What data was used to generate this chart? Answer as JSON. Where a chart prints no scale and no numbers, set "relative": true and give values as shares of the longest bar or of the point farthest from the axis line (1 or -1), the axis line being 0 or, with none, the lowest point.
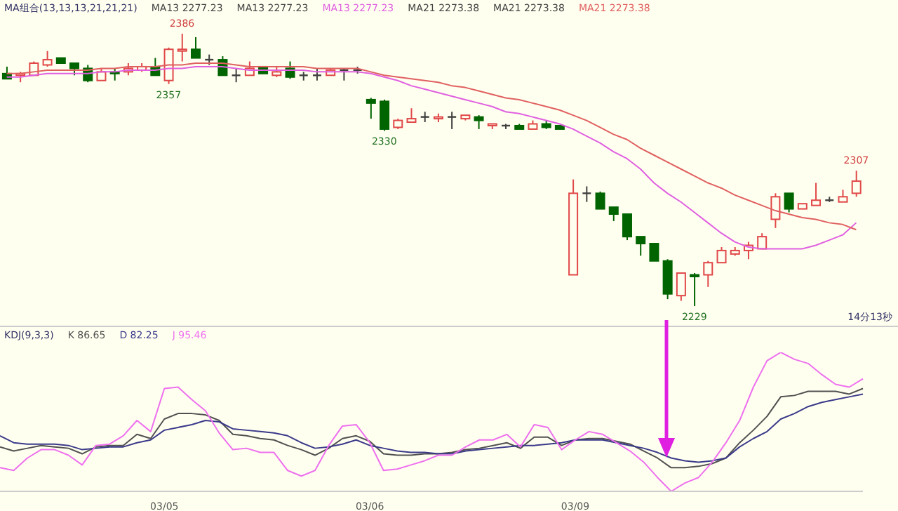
{
  "chart_data": [
    {
      "type": "candlestick",
      "title": "MA组合(13,13,13,21,21,21)",
      "categories": [
        null,
        null,
        null,
        null,
        null,
        null,
        null,
        null,
        null,
        null,
        null,
        null,
        null,
        null,
        null,
        null,
        null,
        null,
        null,
        null,
        null,
        null,
        null,
        null,
        null,
        null,
        null,
        null,
        null,
        null,
        null,
        null,
        null,
        null,
        null,
        null,
        null,
        null,
        null,
        null,
        null,
        null,
        null,
        null,
        null,
        null,
        null,
        null,
        null,
        null,
        null,
        null,
        null,
        null,
        null,
        null,
        null,
        null,
        null,
        null,
        null,
        null,
        null,
        null
      ],
      "ohlc": [
        [
          2363,
          2367,
          2360,
          2360
        ],
        [
          2362,
          2364,
          2358,
          2363
        ],
        [
          2362,
          2370,
          2362,
          2369
        ],
        [
          2368,
          2376,
          2367,
          2371
        ],
        [
          2372,
          2372,
          2369,
          2369
        ],
        [
          2369,
          2369,
          2362,
          2366
        ],
        [
          2366,
          2368,
          2358,
          2359
        ],
        [
          2359,
          2366,
          2359,
          2364
        ],
        [
          2364,
          2366,
          2359,
          2363
        ],
        [
          2364,
          2369,
          2362,
          2366
        ],
        [
          2365,
          2369,
          2364,
          2367
        ],
        [
          2367,
          2372,
          2362,
          2362
        ],
        [
          2359,
          2378,
          2357,
          2377
        ],
        [
          2376,
          2386,
          2370,
          2377
        ],
        [
          2377,
          2384,
          2372,
          2372
        ],
        [
          2371,
          2374,
          2368,
          2371
        ],
        [
          2371,
          2373,
          2362,
          2362
        ],
        [
          2362,
          2366,
          2358,
          2362
        ],
        [
          2362,
          2370,
          2362,
          2366
        ],
        [
          2367,
          2367,
          2363,
          2363
        ],
        [
          2362,
          2367,
          2361,
          2364
        ],
        [
          2366,
          2370,
          2360,
          2361
        ],
        [
          2362,
          2364,
          2359,
          2362
        ],
        [
          2362,
          2366,
          2359,
          2362
        ],
        [
          2362,
          2366,
          2362,
          2365
        ],
        [
          2365,
          2366,
          2359,
          2365
        ],
        [
          2365,
          2367,
          2363,
          2365
        ],
        [
          2348,
          2349,
          2337,
          2346
        ],
        [
          2347,
          2348,
          2330,
          2331
        ],
        [
          2332,
          2337,
          2331,
          2336
        ],
        [
          2335,
          2343,
          2335,
          2337
        ],
        [
          2338,
          2341,
          2335,
          2338
        ],
        [
          2337,
          2340,
          2335,
          2338
        ],
        [
          2338,
          2341,
          2331,
          2338
        ],
        [
          2337,
          2339,
          2336,
          2339
        ],
        [
          2338,
          2339,
          2331,
          2336
        ],
        [
          2333,
          2334,
          2331,
          2334
        ],
        [
          2333,
          2334,
          2331,
          2333
        ],
        [
          2333,
          2334,
          2331,
          2331
        ],
        [
          2331,
          2336,
          2331,
          2334
        ],
        [
          2334,
          2336,
          2331,
          2332
        ],
        [
          2333,
          2333,
          2331,
          2331
        ],
        [
          2247,
          2302,
          2247,
          2294
        ],
        [
          2294,
          2298,
          2289,
          2294
        ],
        [
          2294,
          2295,
          2285,
          2285
        ],
        [
          2286,
          2286,
          2278,
          2282
        ],
        [
          2282,
          2282,
          2267,
          2269
        ],
        [
          2269,
          2269,
          2258,
          2265
        ],
        [
          2265,
          2265,
          2255,
          2255
        ],
        [
          2255,
          2256,
          2233,
          2236
        ],
        [
          2235,
          2248,
          2232,
          2248
        ],
        [
          2247,
          2248,
          2229,
          2246
        ],
        [
          2247,
          2255,
          2240,
          2254
        ],
        [
          2254,
          2263,
          2254,
          2261
        ],
        [
          2259,
          2263,
          2258,
          2261
        ],
        [
          2261,
          2266,
          2256,
          2264
        ],
        [
          2262,
          2271,
          2262,
          2269
        ],
        [
          2279,
          2294,
          2274,
          2292
        ],
        [
          2294,
          2294,
          2283,
          2285
        ],
        [
          2285,
          2288,
          2285,
          2288
        ],
        [
          2287,
          2300,
          2287,
          2290
        ],
        [
          2290,
          2292,
          2289,
          2290
        ],
        [
          2289,
          2296,
          2289,
          2292
        ],
        [
          2294,
          2307,
          2292,
          2301
        ]
      ],
      "series": [
        {
          "type": "line",
          "name": "MA13 2277.23",
          "color": "#e060e0",
          "values": [
            2361,
            2361,
            2362,
            2363,
            2363,
            2363,
            2363,
            2364,
            2364,
            2365,
            2365,
            2365,
            2366,
            2366,
            2367,
            2367,
            2367,
            2366,
            2365,
            2365,
            2365,
            2365,
            2365,
            2364,
            2364,
            2364,
            2364,
            2363,
            2361,
            2359,
            2356,
            2354,
            2352,
            2350,
            2348,
            2346,
            2344,
            2341,
            2340,
            2338,
            2336,
            2334,
            2331,
            2327,
            2323,
            2318,
            2314,
            2308,
            2300,
            2294,
            2289,
            2283,
            2277,
            2271,
            2266,
            2263,
            2262,
            2262,
            2262,
            2262,
            2264,
            2267,
            2270,
            2277
          ]
        },
        {
          "type": "line",
          "name": "MA21 2273.38",
          "color": "#e06060",
          "values": [
            2363,
            2363,
            2364,
            2365,
            2365,
            2365,
            2365,
            2366,
            2366,
            2367,
            2367,
            2367,
            2368,
            2368,
            2369,
            2369,
            2369,
            2368,
            2367,
            2367,
            2367,
            2367,
            2367,
            2366,
            2366,
            2366,
            2366,
            2364,
            2362,
            2361,
            2360,
            2359,
            2358,
            2356,
            2355,
            2353,
            2351,
            2349,
            2348,
            2346,
            2344,
            2342,
            2339,
            2336,
            2332,
            2328,
            2325,
            2320,
            2316,
            2312,
            2308,
            2304,
            2300,
            2297,
            2293,
            2290,
            2287,
            2284,
            2282,
            2280,
            2279,
            2277,
            2276,
            2273
          ]
        }
      ],
      "annotations": [
        "MA13 2277.23",
        "MA13 2277.23",
        "MA21 2273.38",
        "MA21 2273.38",
        "14分13秒",
        {
          "text": "2386",
          "y": 2386
        },
        {
          "text": "2357",
          "y": 2357
        },
        {
          "text": "2330",
          "y": 2330
        },
        {
          "text": "2229",
          "y": 2229
        },
        {
          "text": "2307",
          "y": 2307
        }
      ],
      "legend": "top"
    },
    {
      "type": "line",
      "title": "KDJ(9,3,3)",
      "relative": true,
      "categories": [
        null,
        null,
        null,
        null,
        null,
        null,
        null,
        null,
        null,
        null,
        null,
        null,
        "03/05",
        null,
        null,
        null,
        null,
        null,
        null,
        null,
        null,
        null,
        null,
        null,
        null,
        null,
        null,
        "03/06",
        null,
        null,
        null,
        null,
        null,
        null,
        null,
        null,
        null,
        null,
        null,
        null,
        null,
        null,
        "03/09",
        null,
        null,
        null,
        null,
        null,
        null,
        null,
        null,
        null,
        null,
        null,
        null,
        null,
        null,
        null,
        null,
        null,
        null,
        null,
        null,
        null
      ],
      "series": [
        {
          "name": "K 86.65",
          "color": "#505050",
          "values": [
            0.32,
            0.29,
            0.31,
            0.33,
            0.32,
            0.31,
            0.27,
            0.32,
            0.33,
            0.33,
            0.41,
            0.38,
            0.52,
            0.56,
            0.56,
            0.55,
            0.51,
            0.41,
            0.4,
            0.38,
            0.37,
            0.33,
            0.3,
            0.26,
            0.31,
            0.38,
            0.4,
            0.36,
            0.27,
            0.26,
            0.26,
            0.27,
            0.27,
            0.28,
            0.3,
            0.31,
            0.33,
            0.35,
            0.31,
            0.39,
            0.39,
            0.33,
            0.37,
            0.38,
            0.38,
            0.36,
            0.34,
            0.29,
            0.24,
            0.17,
            0.17,
            0.18,
            0.2,
            0.24,
            0.35,
            0.44,
            0.54,
            0.68,
            0.69,
            0.72,
            0.72,
            0.72,
            0.7,
            0.74
          ]
        },
        {
          "name": "D 82.25",
          "color": "#3a3a8a",
          "values": [
            0.4,
            0.35,
            0.34,
            0.34,
            0.34,
            0.33,
            0.3,
            0.31,
            0.32,
            0.32,
            0.35,
            0.37,
            0.44,
            0.46,
            0.48,
            0.51,
            0.5,
            0.45,
            0.44,
            0.43,
            0.42,
            0.4,
            0.35,
            0.31,
            0.32,
            0.34,
            0.37,
            0.33,
            0.31,
            0.29,
            0.28,
            0.28,
            0.27,
            0.27,
            0.29,
            0.3,
            0.31,
            0.32,
            0.33,
            0.33,
            0.34,
            0.35,
            0.37,
            0.37,
            0.37,
            0.35,
            0.33,
            0.31,
            0.28,
            0.24,
            0.22,
            0.21,
            0.22,
            0.24,
            0.32,
            0.38,
            0.43,
            0.52,
            0.56,
            0.61,
            0.64,
            0.66,
            0.68,
            0.7
          ]
        },
        {
          "name": "J 95.46",
          "color": "#ee70ee",
          "values": [
            0.17,
            0.15,
            0.24,
            0.3,
            0.3,
            0.26,
            0.19,
            0.33,
            0.34,
            0.4,
            0.51,
            0.43,
            0.74,
            0.75,
            0.66,
            0.58,
            0.42,
            0.3,
            0.31,
            0.28,
            0.28,
            0.15,
            0.11,
            0.15,
            0.33,
            0.47,
            0.48,
            0.35,
            0.15,
            0.16,
            0.19,
            0.22,
            0.26,
            0.26,
            0.32,
            0.37,
            0.37,
            0.41,
            0.32,
            0.48,
            0.46,
            0.3,
            0.37,
            0.43,
            0.41,
            0.35,
            0.29,
            0.21,
            0.1,
            0,
            0.06,
            0.1,
            0.21,
            0.35,
            0.51,
            0.75,
            0.94,
            1,
            0.95,
            0.92,
            0.84,
            0.77,
            0.75,
            0.81
          ]
        }
      ],
      "legend": "top left"
    }
  ]
}
